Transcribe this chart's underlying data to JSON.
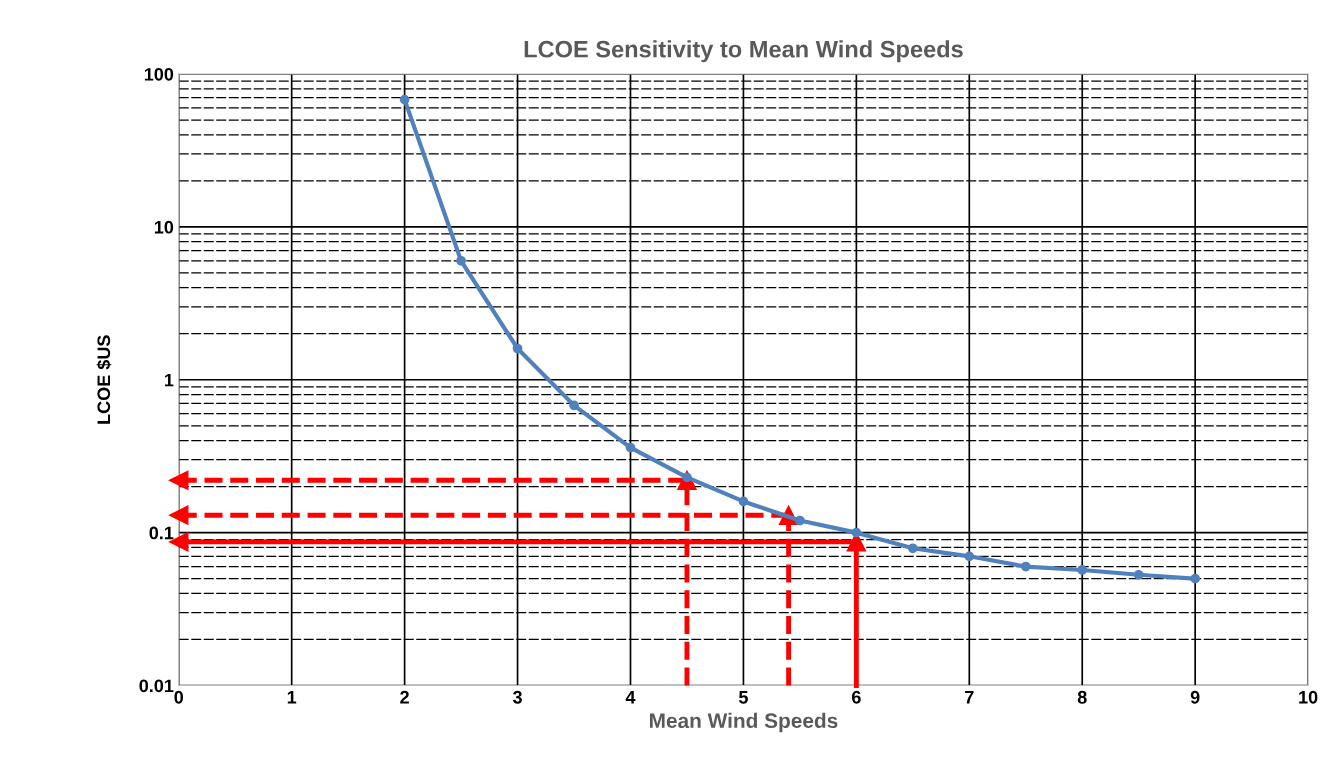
{
  "chart_data": {
    "type": "line",
    "title": "LCOE Sensitivity to Mean Wind Speeds",
    "xlabel": "Mean Wind Speeds",
    "ylabel": "LCOE $US",
    "x": [
      2,
      2.5,
      3,
      3.5,
      4,
      4.5,
      5,
      5.5,
      6,
      6.5,
      7,
      7.5,
      8,
      8.5,
      9
    ],
    "series": [
      {
        "color": "#4f81bd",
        "values": [
          68,
          6.0,
          1.6,
          0.68,
          0.36,
          0.23,
          0.16,
          0.12,
          0.1,
          0.079,
          0.07,
          0.06,
          0.057,
          0.053,
          0.05
        ]
      }
    ],
    "log": "y",
    "xlim": [
      0,
      10
    ],
    "xticks": [
      0,
      1,
      2,
      3,
      4,
      5,
      6,
      7,
      8,
      9,
      10
    ],
    "ylim": [
      0.01,
      100
    ],
    "yticks": [
      0.01,
      0.1,
      1,
      10,
      100
    ],
    "grid": true,
    "marker": "circle",
    "line_style": "solid",
    "ref_lines": [
      {
        "axis": "x",
        "value": 4.5,
        "color": "#ff0000",
        "line_style": "dashed"
      },
      {
        "axis": "x",
        "value": 5.4,
        "color": "#ff0000",
        "line_style": "dashed"
      },
      {
        "axis": "x",
        "value": 6,
        "color": "#ff0000",
        "line_style": "solid"
      },
      {
        "axis": "y",
        "value": 0.22,
        "color": "#ff0000",
        "line_style": "dashed"
      },
      {
        "axis": "y",
        "value": 0.13,
        "color": "#ff0000",
        "line_style": "dashed"
      },
      {
        "axis": "y",
        "value": 0.087,
        "color": "#ff0000",
        "line_style": "solid"
      }
    ]
  }
}
